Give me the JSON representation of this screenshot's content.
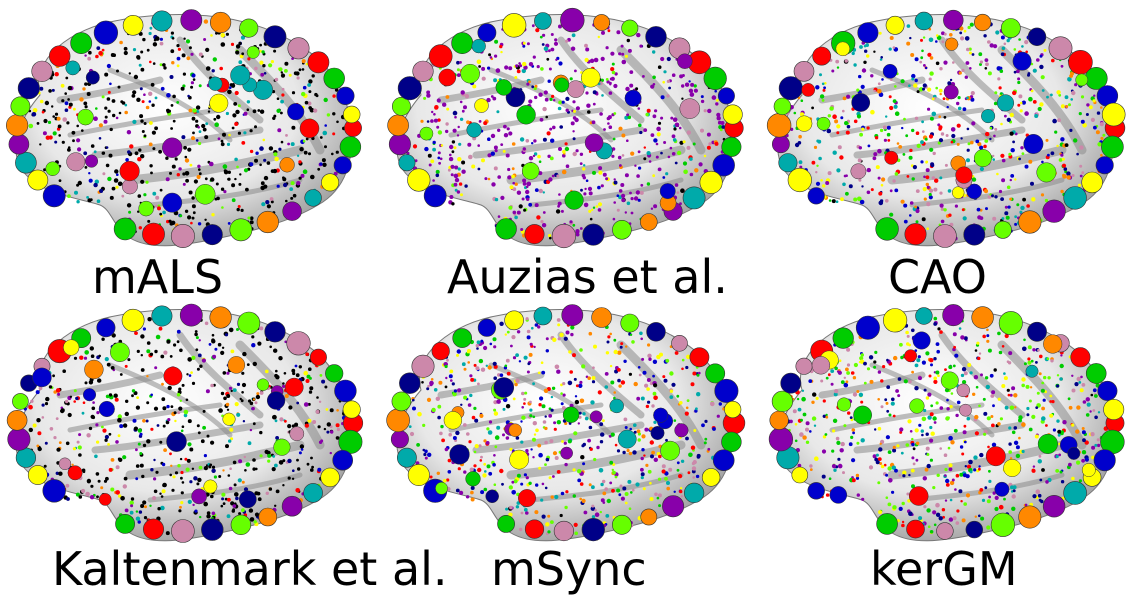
{
  "panels": [
    {
      "label": "mALS",
      "scheme": "malss"
    },
    {
      "label": "Auzias et al.",
      "scheme": "auzias"
    },
    {
      "label": "CAO",
      "scheme": "cao"
    },
    {
      "label": "Kaltenmark et al.",
      "scheme": "kaltenmark"
    },
    {
      "label": "mSync",
      "scheme": "msync"
    },
    {
      "label": "kerGM",
      "scheme": "kergm"
    }
  ],
  "colors": {
    "palette": [
      "#ff0000",
      "#00cc00",
      "#0000cc",
      "#ffff00",
      "#00aaaa",
      "#8800aa",
      "#ff8800",
      "#66ff00",
      "#000088",
      "#cc88aa",
      "#222222"
    ],
    "black": "#000000",
    "purple": "#8800aa"
  }
}
